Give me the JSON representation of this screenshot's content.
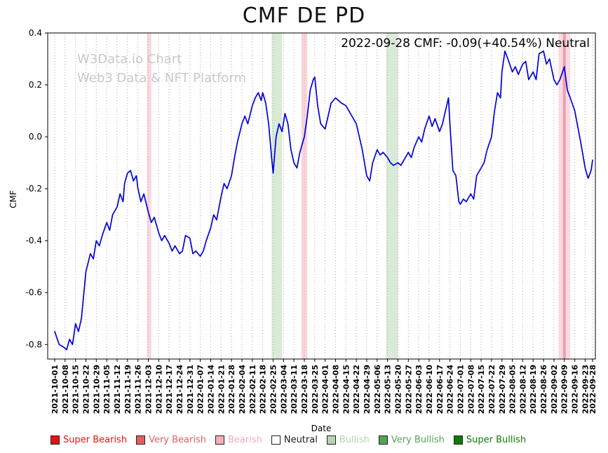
{
  "title": "CMF DE PD",
  "annotation": "2022-09-28 CMF: -0.09(+40.54%) Neutral",
  "watermark": {
    "line1": "W3Data.io Chart",
    "line2": "Web3 Data & NFT Platform"
  },
  "chart_data": {
    "type": "line",
    "title": "CMF DE PD",
    "xlabel": "Date",
    "ylabel": "CMF",
    "ylim": [
      -0.856,
      0.4
    ],
    "xlim_days": [
      0,
      362
    ],
    "grid": "vertical dotted gridlines at weekly ticks",
    "legend_position": "bottom",
    "line_color": "#0000dd",
    "latest": {
      "date": "2022-09-28",
      "cmf": -0.09,
      "change_pct": "+40.54%",
      "signal": "Neutral"
    },
    "yticks": {
      "values": [
        0.4,
        0.2,
        0.0,
        -0.2,
        -0.4,
        -0.6,
        -0.8
      ],
      "labels": [
        "0.4",
        "0.2",
        "0.0",
        "-0.2",
        "-0.4",
        "-0.6",
        "-0.8"
      ]
    },
    "xticks": {
      "days": [
        0,
        7,
        14,
        21,
        28,
        35,
        42,
        49,
        56,
        63,
        70,
        77,
        84,
        91,
        98,
        105,
        112,
        119,
        126,
        133,
        140,
        147,
        154,
        161,
        168,
        175,
        182,
        189,
        196,
        203,
        210,
        217,
        224,
        231,
        238,
        245,
        252,
        259,
        266,
        273,
        280,
        287,
        294,
        301,
        308,
        315,
        322,
        329,
        336,
        343,
        350,
        357,
        362
      ],
      "labels": [
        "2021-10-01",
        "2021-10-08",
        "2021-10-15",
        "2021-10-22",
        "2021-10-29",
        "2021-11-05",
        "2021-11-12",
        "2021-11-19",
        "2021-11-26",
        "2021-12-03",
        "2021-12-10",
        "2021-12-17",
        "2021-12-24",
        "2021-12-31",
        "2022-01-07",
        "2022-01-14",
        "2022-01-21",
        "2022-01-28",
        "2022-02-04",
        "2022-02-11",
        "2022-02-18",
        "2022-02-25",
        "2022-03-04",
        "2022-03-11",
        "2022-03-18",
        "2022-03-25",
        "2022-04-01",
        "2022-04-08",
        "2022-04-15",
        "2022-04-22",
        "2022-04-29",
        "2022-05-06",
        "2022-05-13",
        "2022-05-20",
        "2022-05-27",
        "2022-06-03",
        "2022-06-10",
        "2022-06-17",
        "2022-06-24",
        "2022-07-01",
        "2022-07-08",
        "2022-07-15",
        "2022-07-22",
        "2022-07-29",
        "2022-08-05",
        "2022-08-12",
        "2022-08-19",
        "2022-08-26",
        "2022-09-02",
        "2022-09-09",
        "2022-09-16",
        "2022-09-23",
        "2022-09-28"
      ]
    },
    "series": [
      {
        "name": "CMF",
        "x_days": [
          0,
          3,
          6,
          8,
          10,
          12,
          14,
          16,
          18,
          21,
          24,
          26,
          28,
          30,
          32,
          35,
          37,
          39,
          42,
          44,
          46,
          47,
          49,
          51,
          53,
          55,
          56,
          58,
          60,
          63,
          65,
          67,
          70,
          72,
          74,
          77,
          79,
          81,
          84,
          86,
          88,
          91,
          93,
          95,
          98,
          100,
          102,
          105,
          107,
          109,
          112,
          114,
          116,
          119,
          121,
          123,
          126,
          128,
          130,
          133,
          135,
          137,
          139,
          140,
          142,
          144,
          146,
          147,
          149,
          151,
          153,
          155,
          157,
          159,
          161,
          163,
          165,
          167,
          168,
          170,
          172,
          174,
          175,
          177,
          179,
          182,
          184,
          186,
          189,
          191,
          193,
          196,
          198,
          200,
          203,
          205,
          207,
          210,
          212,
          214,
          217,
          219,
          221,
          224,
          226,
          228,
          231,
          233,
          235,
          238,
          240,
          242,
          245,
          247,
          249,
          252,
          254,
          256,
          259,
          261,
          263,
          265,
          266,
          268,
          270,
          272,
          273,
          275,
          277,
          280,
          282,
          284,
          287,
          289,
          291,
          294,
          296,
          298,
          300,
          301,
          303,
          305,
          308,
          310,
          312,
          315,
          317,
          319,
          322,
          324,
          326,
          329,
          331,
          333,
          336,
          338,
          340,
          343,
          345,
          347,
          350,
          352,
          354,
          357,
          359,
          361,
          362
        ],
        "values": [
          -0.75,
          -0.8,
          -0.81,
          -0.82,
          -0.78,
          -0.8,
          -0.72,
          -0.75,
          -0.7,
          -0.52,
          -0.45,
          -0.47,
          -0.4,
          -0.42,
          -0.38,
          -0.33,
          -0.36,
          -0.3,
          -0.27,
          -0.22,
          -0.25,
          -0.18,
          -0.14,
          -0.13,
          -0.17,
          -0.15,
          -0.2,
          -0.25,
          -0.22,
          -0.29,
          -0.33,
          -0.31,
          -0.37,
          -0.4,
          -0.38,
          -0.41,
          -0.44,
          -0.42,
          -0.45,
          -0.44,
          -0.38,
          -0.39,
          -0.45,
          -0.44,
          -0.46,
          -0.44,
          -0.4,
          -0.35,
          -0.3,
          -0.32,
          -0.23,
          -0.18,
          -0.2,
          -0.15,
          -0.08,
          -0.02,
          0.05,
          0.08,
          0.05,
          0.12,
          0.15,
          0.17,
          0.14,
          0.17,
          0.13,
          0.05,
          -0.08,
          -0.14,
          0.0,
          0.05,
          0.02,
          0.09,
          0.05,
          -0.05,
          -0.1,
          -0.12,
          -0.06,
          -0.02,
          0.0,
          0.08,
          0.18,
          0.22,
          0.23,
          0.12,
          0.05,
          0.03,
          0.08,
          0.13,
          0.15,
          0.14,
          0.13,
          0.12,
          0.1,
          0.08,
          0.05,
          0.0,
          -0.05,
          -0.15,
          -0.17,
          -0.1,
          -0.05,
          -0.07,
          -0.06,
          -0.08,
          -0.1,
          -0.11,
          -0.1,
          -0.11,
          -0.09,
          -0.06,
          -0.08,
          -0.04,
          0.0,
          -0.02,
          0.03,
          0.08,
          0.04,
          0.07,
          0.02,
          0.05,
          0.1,
          0.15,
          0.05,
          -0.13,
          -0.15,
          -0.25,
          -0.26,
          -0.24,
          -0.25,
          -0.22,
          -0.24,
          -0.15,
          -0.12,
          -0.1,
          -0.05,
          0.0,
          0.1,
          0.17,
          0.15,
          0.25,
          0.33,
          0.3,
          0.25,
          0.27,
          0.24,
          0.28,
          0.29,
          0.22,
          0.25,
          0.22,
          0.32,
          0.33,
          0.28,
          0.3,
          0.22,
          0.2,
          0.22,
          0.27,
          0.18,
          0.15,
          0.1,
          0.04,
          -0.02,
          -0.12,
          -0.16,
          -0.13,
          -0.09
        ]
      }
    ],
    "bands": [
      {
        "label": "bearish",
        "from_day": 62,
        "to_day": 65,
        "color": "#f5b8c3",
        "opacity": 0.55
      },
      {
        "label": "bullish",
        "from_day": 146,
        "to_day": 153,
        "color": "#bfdcbb",
        "opacity": 0.6
      },
      {
        "label": "bearish",
        "from_day": 166,
        "to_day": 170,
        "color": "#f5b8c3",
        "opacity": 0.6
      },
      {
        "label": "bullish",
        "from_day": 223,
        "to_day": 231,
        "color": "#bfdcbb",
        "opacity": 0.6
      },
      {
        "label": "bearish",
        "from_day": 339,
        "to_day": 347,
        "color": "#f5b8c3",
        "opacity": 0.5
      },
      {
        "label": "very-bearish",
        "from_day": 342,
        "to_day": 344,
        "color": "#ee93a2",
        "opacity": 0.8
      }
    ],
    "legend": [
      {
        "label": "Super Bearish",
        "color": "#e81212",
        "text_color": "#e81212"
      },
      {
        "label": "Very Bearish",
        "color": "#e35f5f",
        "text_color": "#e35f5f"
      },
      {
        "label": "Bearish",
        "color": "#f2afbe",
        "text_color": "#f2afbe"
      },
      {
        "label": "Neutral",
        "color": "#ffffff",
        "text_color": "#1a1a1a"
      },
      {
        "label": "Bullish",
        "color": "#b4d6ae",
        "text_color": "#b4d6ae"
      },
      {
        "label": "Very Bullish",
        "color": "#56a156",
        "text_color": "#56a156"
      },
      {
        "label": "Super Bullish",
        "color": "#0b7c0b",
        "text_color": "#0b7c0b"
      }
    ]
  }
}
